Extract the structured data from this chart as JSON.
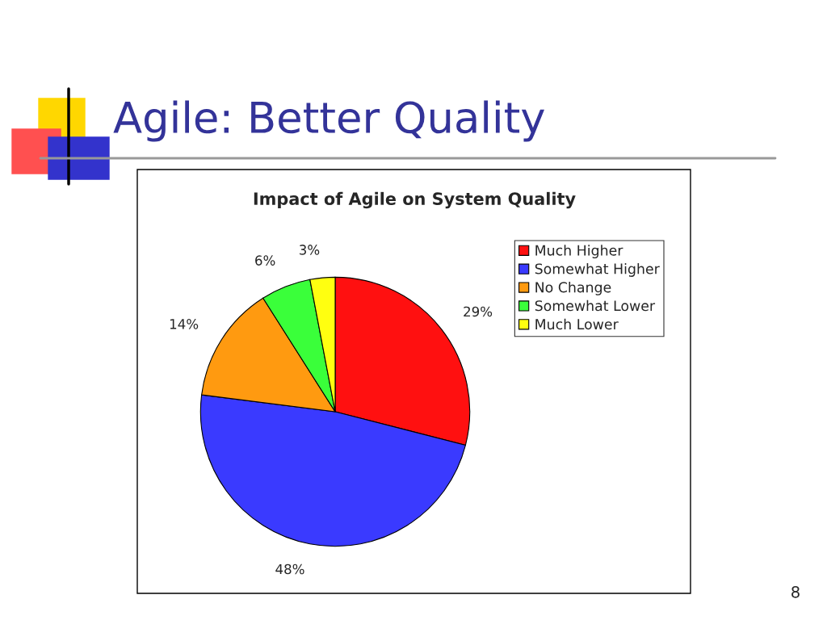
{
  "chart_data": {
    "type": "pie",
    "title": "Agile: Better Quality",
    "subtitle": "Impact of Agile on System Quality",
    "categories": [
      "Much Higher",
      "Somewhat Higher",
      "No Change",
      "Somewhat Lower",
      "Much Lower"
    ],
    "values": [
      29,
      48,
      14,
      6,
      3
    ],
    "value_labels": [
      "29%",
      "48%",
      "14%",
      "6%",
      "3%"
    ],
    "colors": [
      "#ff1010",
      "#3a3aff",
      "#ff9a10",
      "#3aff3a",
      "#ffff10"
    ],
    "legend": "top right",
    "annotations": [
      "8"
    ]
  }
}
